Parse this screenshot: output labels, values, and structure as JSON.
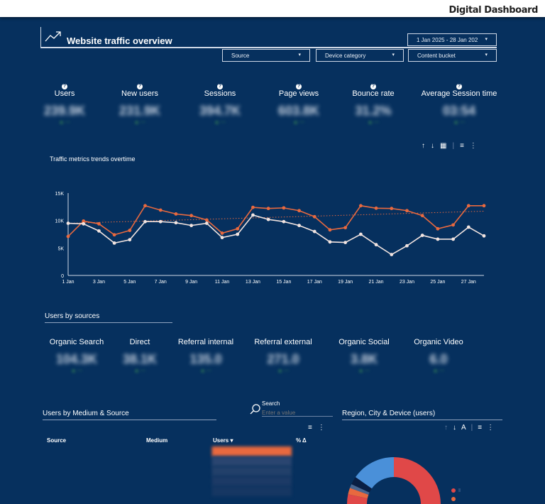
{
  "header": {
    "title": "Digital Dashboard"
  },
  "overview": {
    "title": "Website traffic overview",
    "date_range": "1 Jan 2025 - 28 Jan 202",
    "filters": [
      "Source",
      "Device category",
      "Content bucket"
    ]
  },
  "kpis": [
    {
      "label": "Users",
      "value": "239.9K"
    },
    {
      "label": "New users",
      "value": "231.9K"
    },
    {
      "label": "Sessions",
      "value": "394.7K"
    },
    {
      "label": "Page views",
      "value": "603.8K"
    },
    {
      "label": "Bounce rate",
      "value": "31.2%"
    },
    {
      "label": "Average Session time",
      "value": "03:54"
    }
  ],
  "chart_data": {
    "type": "line",
    "title": "Traffic metrics trends overtime",
    "x": [
      "1 Jan",
      "2 Jan",
      "3 Jan",
      "4 Jan",
      "5 Jan",
      "6 Jan",
      "7 Jan",
      "8 Jan",
      "9 Jan",
      "10 Jan",
      "11 Jan",
      "12 Jan",
      "13 Jan",
      "14 Jan",
      "15 Jan",
      "16 Jan",
      "17 Jan",
      "18 Jan",
      "19 Jan",
      "20 Jan",
      "21 Jan",
      "22 Jan",
      "23 Jan",
      "24 Jan",
      "25 Jan",
      "26 Jan",
      "27 Jan",
      "28 Jan"
    ],
    "x_tick_labels": [
      "1 Jan",
      "3 Jan",
      "5 Jan",
      "7 Jan",
      "9 Jan",
      "11 Jan",
      "13 Jan",
      "15 Jan",
      "17 Jan",
      "19 Jan",
      "21 Jan",
      "23 Jan",
      "25 Jan",
      "27 Jan"
    ],
    "y_tick_labels": [
      "0",
      "5K",
      "10K",
      "15K"
    ],
    "ylim": [
      0,
      15000
    ],
    "series": [
      {
        "color": "#e8693f",
        "values": [
          7100,
          9900,
          9400,
          7400,
          8200,
          12700,
          11900,
          11200,
          10900,
          10100,
          7700,
          8500,
          12400,
          12200,
          12300,
          11800,
          10700,
          8300,
          8700,
          12700,
          12250,
          12200,
          11800,
          10900,
          8500,
          9200,
          12700,
          12700
        ]
      },
      {
        "color": "#f2e4e0",
        "values": [
          9500,
          9400,
          8100,
          5900,
          6500,
          9800,
          9800,
          9600,
          9100,
          9500,
          6900,
          7500,
          11000,
          10200,
          9800,
          9100,
          8000,
          6100,
          6000,
          7500,
          5600,
          3800,
          5400,
          7300,
          6600,
          6600,
          8800,
          7200
        ]
      }
    ],
    "trendline": {
      "series": 0,
      "start": 9500,
      "end": 11700,
      "style": "dotted"
    }
  },
  "sources": {
    "title": "Users by sources",
    "items": [
      {
        "label": "Organic Search",
        "value": "104.3K"
      },
      {
        "label": "Direct",
        "value": "38.1K"
      },
      {
        "label": "Referral internal",
        "value": "135.0"
      },
      {
        "label": "Referral external",
        "value": "271.0"
      },
      {
        "label": "Organic Social",
        "value": "3.8K"
      },
      {
        "label": "Organic Video",
        "value": "6.0"
      }
    ]
  },
  "table": {
    "title": "Users by Medium & Source",
    "search_label": "Search",
    "search_placeholder": "Enter a value",
    "columns": [
      "Source",
      "Medium",
      "Users ▾",
      "% Δ"
    ]
  },
  "region": {
    "title": "Region, City & Device (users)"
  },
  "colors": {
    "background": "#06305e",
    "orange": "#e8693f",
    "red": "#e04848",
    "blue": "#4a90d9"
  }
}
